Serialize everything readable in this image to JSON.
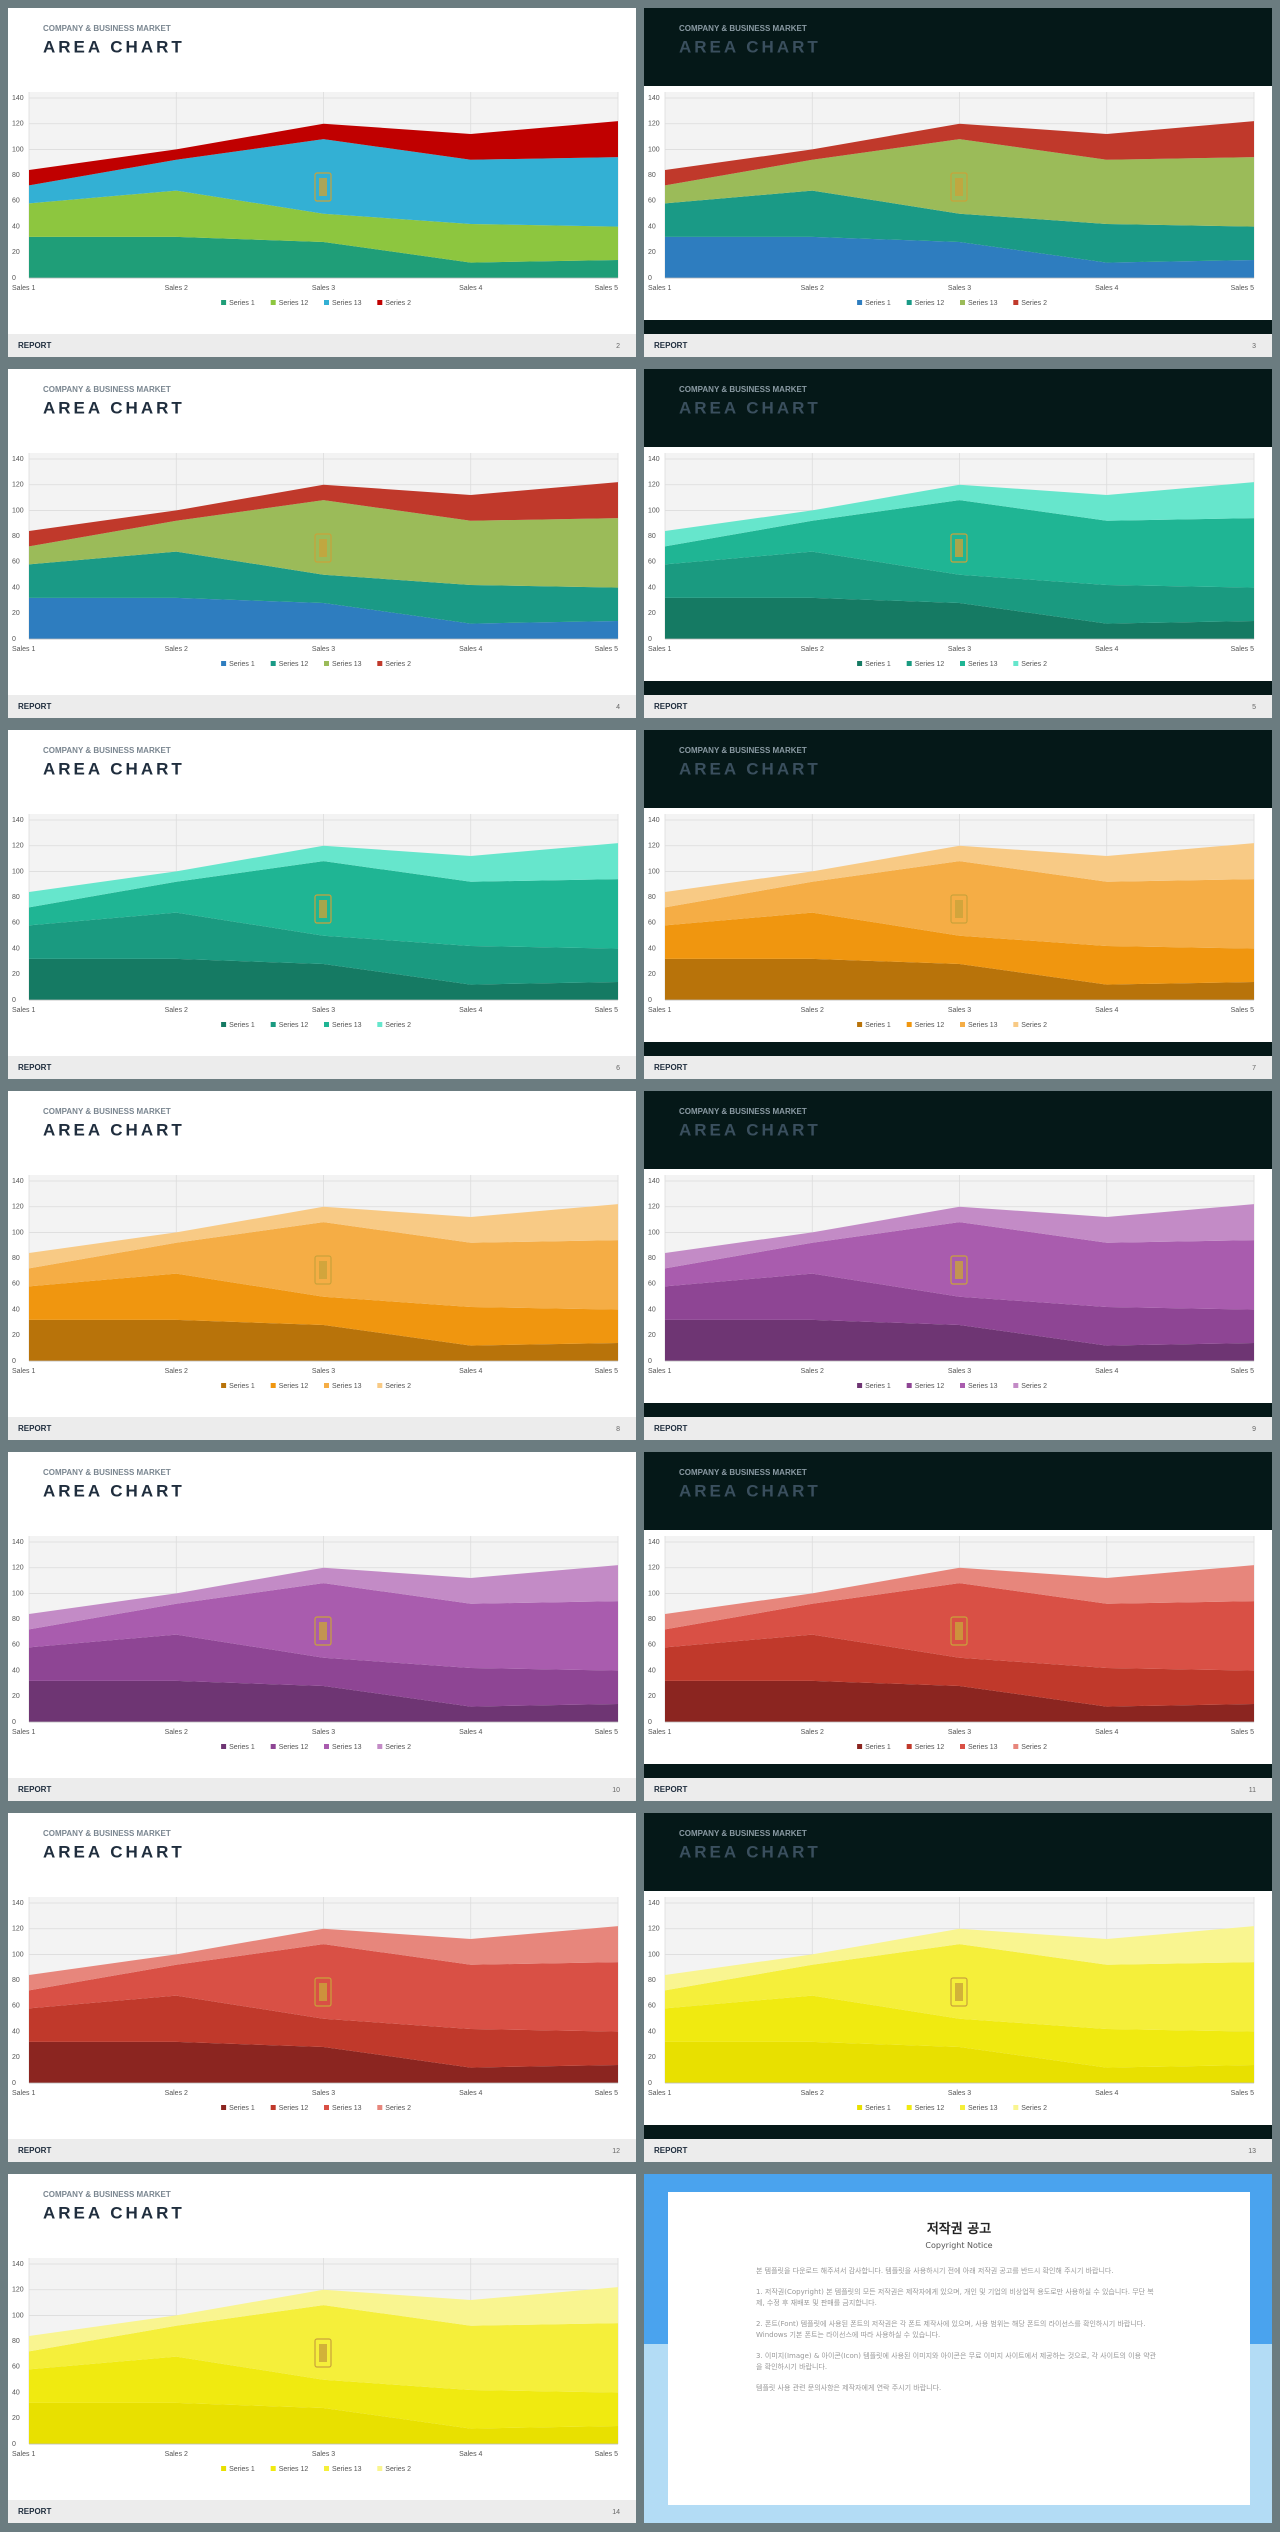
{
  "chart_data": [
    {
      "type": "area",
      "stacked": true,
      "categories": [
        "Sales 1",
        "Sales 2",
        "Sales 3",
        "Sales 4",
        "Sales 5"
      ],
      "series": [
        {
          "name": "Series 1",
          "color": "#1f9e78",
          "values": [
            32,
            32,
            28,
            12,
            14
          ]
        },
        {
          "name": "Series 12",
          "color": "#8dc63f",
          "values": [
            26,
            36,
            22,
            30,
            26
          ]
        },
        {
          "name": "Series 13",
          "color": "#33b0d4",
          "values": [
            14,
            24,
            58,
            50,
            54
          ]
        },
        {
          "name": "Series 2",
          "color": "#c00000",
          "values": [
            12,
            8,
            12,
            20,
            28
          ]
        }
      ],
      "ylim": [
        0,
        140
      ],
      "yticks": [
        0,
        20,
        40,
        60,
        80,
        100,
        120,
        140
      ],
      "grid": true,
      "legend": "bottom"
    },
    {
      "type": "area",
      "stacked": true,
      "categories": [
        "Sales 1",
        "Sales 2",
        "Sales 3",
        "Sales 4",
        "Sales 5"
      ],
      "series": [
        {
          "name": "Series 1",
          "color": "#2e7dbf",
          "values": [
            32,
            32,
            28,
            12,
            14
          ]
        },
        {
          "name": "Series 12",
          "color": "#1a9a86",
          "values": [
            26,
            36,
            22,
            30,
            26
          ]
        },
        {
          "name": "Series 13",
          "color": "#9bbb59",
          "values": [
            14,
            24,
            58,
            50,
            54
          ]
        },
        {
          "name": "Series 2",
          "color": "#c0392b",
          "values": [
            12,
            8,
            12,
            20,
            28
          ]
        }
      ],
      "ylim": [
        0,
        140
      ],
      "yticks": [
        0,
        20,
        40,
        60,
        80,
        100,
        120,
        140
      ],
      "grid": true,
      "legend": "bottom"
    },
    {
      "type": "area",
      "stacked": true,
      "categories": [
        "Sales 1",
        "Sales 2",
        "Sales 3",
        "Sales 4",
        "Sales 5"
      ],
      "series": [
        {
          "name": "Series 1",
          "color": "#2e7dbf",
          "values": [
            32,
            32,
            28,
            12,
            14
          ]
        },
        {
          "name": "Series 12",
          "color": "#1a9a86",
          "values": [
            26,
            36,
            22,
            30,
            26
          ]
        },
        {
          "name": "Series 13",
          "color": "#9bbb59",
          "values": [
            14,
            24,
            58,
            50,
            54
          ]
        },
        {
          "name": "Series 2",
          "color": "#c0392b",
          "values": [
            12,
            8,
            12,
            20,
            28
          ]
        }
      ],
      "ylim": [
        0,
        140
      ],
      "yticks": [
        0,
        20,
        40,
        60,
        80,
        100,
        120,
        140
      ],
      "grid": true,
      "legend": "bottom"
    },
    {
      "type": "area",
      "stacked": true,
      "categories": [
        "Sales 1",
        "Sales 2",
        "Sales 3",
        "Sales 4",
        "Sales 5"
      ],
      "series": [
        {
          "name": "Series 1",
          "color": "#157a63",
          "values": [
            32,
            32,
            28,
            12,
            14
          ]
        },
        {
          "name": "Series 12",
          "color": "#1a9a80",
          "values": [
            26,
            36,
            22,
            30,
            26
          ]
        },
        {
          "name": "Series 13",
          "color": "#1fb594",
          "values": [
            14,
            24,
            58,
            50,
            54
          ]
        },
        {
          "name": "Series 2",
          "color": "#66e6cc",
          "values": [
            12,
            8,
            12,
            20,
            28
          ]
        }
      ],
      "ylim": [
        0,
        140
      ],
      "yticks": [
        0,
        20,
        40,
        60,
        80,
        100,
        120,
        140
      ],
      "grid": true,
      "legend": "bottom"
    },
    {
      "type": "area",
      "stacked": true,
      "categories": [
        "Sales 1",
        "Sales 2",
        "Sales 3",
        "Sales 4",
        "Sales 5"
      ],
      "series": [
        {
          "name": "Series 1",
          "color": "#157a63",
          "values": [
            32,
            32,
            28,
            12,
            14
          ]
        },
        {
          "name": "Series 12",
          "color": "#1a9a80",
          "values": [
            26,
            36,
            22,
            30,
            26
          ]
        },
        {
          "name": "Series 13",
          "color": "#1fb594",
          "values": [
            14,
            24,
            58,
            50,
            54
          ]
        },
        {
          "name": "Series 2",
          "color": "#66e6cc",
          "values": [
            12,
            8,
            12,
            20,
            28
          ]
        }
      ],
      "ylim": [
        0,
        140
      ],
      "yticks": [
        0,
        20,
        40,
        60,
        80,
        100,
        120,
        140
      ],
      "grid": true,
      "legend": "bottom"
    },
    {
      "type": "area",
      "stacked": true,
      "categories": [
        "Sales 1",
        "Sales 2",
        "Sales 3",
        "Sales 4",
        "Sales 5"
      ],
      "series": [
        {
          "name": "Series 1",
          "color": "#b8730a",
          "values": [
            32,
            32,
            28,
            12,
            14
          ]
        },
        {
          "name": "Series 12",
          "color": "#f0960f",
          "values": [
            26,
            36,
            22,
            30,
            26
          ]
        },
        {
          "name": "Series 13",
          "color": "#f5ad45",
          "values": [
            14,
            24,
            58,
            50,
            54
          ]
        },
        {
          "name": "Series 2",
          "color": "#f8ca85",
          "values": [
            12,
            8,
            12,
            20,
            28
          ]
        }
      ],
      "ylim": [
        0,
        140
      ],
      "yticks": [
        0,
        20,
        40,
        60,
        80,
        100,
        120,
        140
      ],
      "grid": true,
      "legend": "bottom"
    },
    {
      "type": "area",
      "stacked": true,
      "categories": [
        "Sales 1",
        "Sales 2",
        "Sales 3",
        "Sales 4",
        "Sales 5"
      ],
      "series": [
        {
          "name": "Series 1",
          "color": "#b8730a",
          "values": [
            32,
            32,
            28,
            12,
            14
          ]
        },
        {
          "name": "Series 12",
          "color": "#f0960f",
          "values": [
            26,
            36,
            22,
            30,
            26
          ]
        },
        {
          "name": "Series 13",
          "color": "#f5ad45",
          "values": [
            14,
            24,
            58,
            50,
            54
          ]
        },
        {
          "name": "Series 2",
          "color": "#f8ca85",
          "values": [
            12,
            8,
            12,
            20,
            28
          ]
        }
      ],
      "ylim": [
        0,
        140
      ],
      "yticks": [
        0,
        20,
        40,
        60,
        80,
        100,
        120,
        140
      ],
      "grid": true,
      "legend": "bottom"
    },
    {
      "type": "area",
      "stacked": true,
      "categories": [
        "Sales 1",
        "Sales 2",
        "Sales 3",
        "Sales 4",
        "Sales 5"
      ],
      "series": [
        {
          "name": "Series 1",
          "color": "#6e3573",
          "values": [
            32,
            32,
            28,
            12,
            14
          ]
        },
        {
          "name": "Series 12",
          "color": "#8e4594",
          "values": [
            26,
            36,
            22,
            30,
            26
          ]
        },
        {
          "name": "Series 13",
          "color": "#a95cae",
          "values": [
            14,
            24,
            58,
            50,
            54
          ]
        },
        {
          "name": "Series 2",
          "color": "#c38bc6",
          "values": [
            12,
            8,
            12,
            20,
            28
          ]
        }
      ],
      "ylim": [
        0,
        140
      ],
      "yticks": [
        0,
        20,
        40,
        60,
        80,
        100,
        120,
        140
      ],
      "grid": true,
      "legend": "bottom"
    },
    {
      "type": "area",
      "stacked": true,
      "categories": [
        "Sales 1",
        "Sales 2",
        "Sales 3",
        "Sales 4",
        "Sales 5"
      ],
      "series": [
        {
          "name": "Series 1",
          "color": "#6e3573",
          "values": [
            32,
            32,
            28,
            12,
            14
          ]
        },
        {
          "name": "Series 12",
          "color": "#8e4594",
          "values": [
            26,
            36,
            22,
            30,
            26
          ]
        },
        {
          "name": "Series 13",
          "color": "#a95cae",
          "values": [
            14,
            24,
            58,
            50,
            54
          ]
        },
        {
          "name": "Series 2",
          "color": "#c38bc6",
          "values": [
            12,
            8,
            12,
            20,
            28
          ]
        }
      ],
      "ylim": [
        0,
        140
      ],
      "yticks": [
        0,
        20,
        40,
        60,
        80,
        100,
        120,
        140
      ],
      "grid": true,
      "legend": "bottom"
    },
    {
      "type": "area",
      "stacked": true,
      "categories": [
        "Sales 1",
        "Sales 2",
        "Sales 3",
        "Sales 4",
        "Sales 5"
      ],
      "series": [
        {
          "name": "Series 1",
          "color": "#8b2520",
          "values": [
            32,
            32,
            28,
            12,
            14
          ]
        },
        {
          "name": "Series 12",
          "color": "#c0392b",
          "values": [
            26,
            36,
            22,
            30,
            26
          ]
        },
        {
          "name": "Series 13",
          "color": "#d95045",
          "values": [
            14,
            24,
            58,
            50,
            54
          ]
        },
        {
          "name": "Series 2",
          "color": "#e7867c",
          "values": [
            12,
            8,
            12,
            20,
            28
          ]
        }
      ],
      "ylim": [
        0,
        140
      ],
      "yticks": [
        0,
        20,
        40,
        60,
        80,
        100,
        120,
        140
      ],
      "grid": true,
      "legend": "bottom"
    },
    {
      "type": "area",
      "stacked": true,
      "categories": [
        "Sales 1",
        "Sales 2",
        "Sales 3",
        "Sales 4",
        "Sales 5"
      ],
      "series": [
        {
          "name": "Series 1",
          "color": "#8b2520",
          "values": [
            32,
            32,
            28,
            12,
            14
          ]
        },
        {
          "name": "Series 12",
          "color": "#c0392b",
          "values": [
            26,
            36,
            22,
            30,
            26
          ]
        },
        {
          "name": "Series 13",
          "color": "#d95045",
          "values": [
            14,
            24,
            58,
            50,
            54
          ]
        },
        {
          "name": "Series 2",
          "color": "#e7867c",
          "values": [
            12,
            8,
            12,
            20,
            28
          ]
        }
      ],
      "ylim": [
        0,
        140
      ],
      "yticks": [
        0,
        20,
        40,
        60,
        80,
        100,
        120,
        140
      ],
      "grid": true,
      "legend": "bottom"
    },
    {
      "type": "area",
      "stacked": true,
      "categories": [
        "Sales 1",
        "Sales 2",
        "Sales 3",
        "Sales 4",
        "Sales 5"
      ],
      "series": [
        {
          "name": "Series 1",
          "color": "#e8e000",
          "values": [
            32,
            32,
            28,
            12,
            14
          ]
        },
        {
          "name": "Series 12",
          "color": "#f0ea10",
          "values": [
            26,
            36,
            22,
            30,
            26
          ]
        },
        {
          "name": "Series 13",
          "color": "#f5ef3a",
          "values": [
            14,
            24,
            58,
            50,
            54
          ]
        },
        {
          "name": "Series 2",
          "color": "#f9f590",
          "values": [
            12,
            8,
            12,
            20,
            28
          ]
        }
      ],
      "ylim": [
        0,
        140
      ],
      "yticks": [
        0,
        20,
        40,
        60,
        80,
        100,
        120,
        140
      ],
      "grid": true,
      "legend": "bottom"
    },
    {
      "type": "area",
      "stacked": true,
      "categories": [
        "Sales 1",
        "Sales 2",
        "Sales 3",
        "Sales 4",
        "Sales 5"
      ],
      "series": [
        {
          "name": "Series 1",
          "color": "#e8e000",
          "values": [
            32,
            32,
            28,
            12,
            14
          ]
        },
        {
          "name": "Series 12",
          "color": "#f0ea10",
          "values": [
            26,
            36,
            22,
            30,
            26
          ]
        },
        {
          "name": "Series 13",
          "color": "#f5ef3a",
          "values": [
            14,
            24,
            58,
            50,
            54
          ]
        },
        {
          "name": "Series 2",
          "color": "#f9f590",
          "values": [
            12,
            8,
            12,
            20,
            28
          ]
        }
      ],
      "ylim": [
        0,
        140
      ],
      "yticks": [
        0,
        20,
        40,
        60,
        80,
        100,
        120,
        140
      ],
      "grid": true,
      "legend": "bottom"
    }
  ],
  "slides": [
    {
      "kicker": "COMPANY & BUSINESS MARKET",
      "title": "AREA CHART",
      "footer": "REPORT",
      "page": 2,
      "theme": "light"
    },
    {
      "kicker": "COMPANY & BUSINESS MARKET",
      "title": "AREA CHART",
      "footer": "REPORT",
      "page": 3,
      "theme": "dark"
    },
    {
      "kicker": "COMPANY & BUSINESS MARKET",
      "title": "AREA CHART",
      "footer": "REPORT",
      "page": 4,
      "theme": "light"
    },
    {
      "kicker": "COMPANY & BUSINESS MARKET",
      "title": "AREA CHART",
      "footer": "REPORT",
      "page": 5,
      "theme": "dark"
    },
    {
      "kicker": "COMPANY & BUSINESS MARKET",
      "title": "AREA CHART",
      "footer": "REPORT",
      "page": 6,
      "theme": "light"
    },
    {
      "kicker": "COMPANY & BUSINESS MARKET",
      "title": "AREA CHART",
      "footer": "REPORT",
      "page": 7,
      "theme": "dark"
    },
    {
      "kicker": "COMPANY & BUSINESS MARKET",
      "title": "AREA CHART",
      "footer": "REPORT",
      "page": 8,
      "theme": "light"
    },
    {
      "kicker": "COMPANY & BUSINESS MARKET",
      "title": "AREA CHART",
      "footer": "REPORT",
      "page": 9,
      "theme": "dark"
    },
    {
      "kicker": "COMPANY & BUSINESS MARKET",
      "title": "AREA CHART",
      "footer": "REPORT",
      "page": 10,
      "theme": "light"
    },
    {
      "kicker": "COMPANY & BUSINESS MARKET",
      "title": "AREA CHART",
      "footer": "REPORT",
      "page": 11,
      "theme": "dark"
    },
    {
      "kicker": "COMPANY & BUSINESS MARKET",
      "title": "AREA CHART",
      "footer": "REPORT",
      "page": 12,
      "theme": "light"
    },
    {
      "kicker": "COMPANY & BUSINESS MARKET",
      "title": "AREA CHART",
      "footer": "REPORT",
      "page": 13,
      "theme": "dark"
    },
    {
      "kicker": "COMPANY & BUSINESS MARKET",
      "title": "AREA CHART",
      "footer": "REPORT",
      "page": 14,
      "theme": "light"
    }
  ],
  "notice": {
    "title": "저작권 공고",
    "subtitle": "Copyright Notice",
    "paragraphs": [
      "본 템플릿을 다운로드 해주셔서 감사합니다. 템플릿을 사용하시기 전에 아래 저작권 공고를 반드시 확인해 주시기 바랍니다.",
      "1. 저작권(Copyright) 본 템플릿의 모든 저작권은 제작자에게 있으며, 개인 및 기업의 비상업적 용도로만 사용하실 수 있습니다. 무단 복제, 수정 후 재배포 및 판매를 금지합니다.",
      "2. 폰트(Font) 템플릿에 사용된 폰트의 저작권은 각 폰트 제작사에 있으며, 사용 범위는 해당 폰트의 라이선스를 확인하시기 바랍니다. Windows 기본 폰트는 라이선스에 따라 사용하실 수 있습니다.",
      "3. 이미지(Image) & 아이콘(Icon) 템플릿에 사용된 이미지와 아이콘은 무료 이미지 사이트에서 제공하는 것으로, 각 사이트의 이용 약관을 확인하시기 바랍니다.",
      "템플릿 사용 관련 문의사항은 제작자에게 연락 주시기 바랍니다."
    ]
  }
}
